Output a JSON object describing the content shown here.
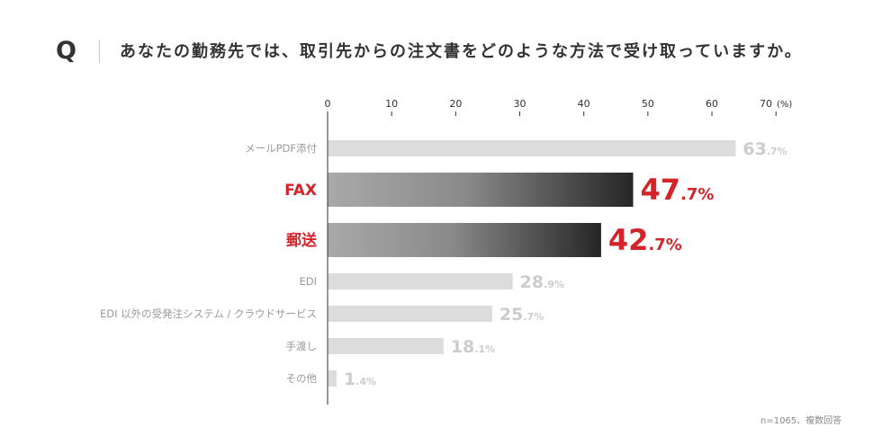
{
  "question": {
    "mark": "Q",
    "text": "あなたの勤務先では、取引先からの注文書をどのような方法で受け取っていますか。"
  },
  "chart_data": {
    "type": "bar",
    "orientation": "horizontal",
    "categories": [
      "メールPDF添付",
      "FAX",
      "郵送",
      "EDI",
      "EDI 以外の受発注システム / クラウドサービス",
      "手渡し",
      "その他"
    ],
    "values": [
      63.7,
      47.7,
      42.7,
      28.9,
      25.7,
      18.1,
      1.4
    ],
    "highlight": [
      false,
      true,
      true,
      false,
      false,
      false,
      false
    ],
    "value_suffix": "%",
    "xlim": [
      0,
      70
    ],
    "xticks": [
      0,
      10,
      20,
      30,
      40,
      50,
      60,
      70
    ],
    "unit": "(%)",
    "grid": false,
    "legend": "none"
  },
  "note": "n=1065、複数回答",
  "colors": {
    "text": "#333333",
    "axis": "#333333",
    "highlight": "#d4242a",
    "bar": "#dcdcdc",
    "gradient_start": "#a9a9a9",
    "gradient_mid": "#8a8a8a",
    "gradient_end": "#262626",
    "muted_label": "#9a9a9a",
    "value_muted": "#cccccc"
  }
}
